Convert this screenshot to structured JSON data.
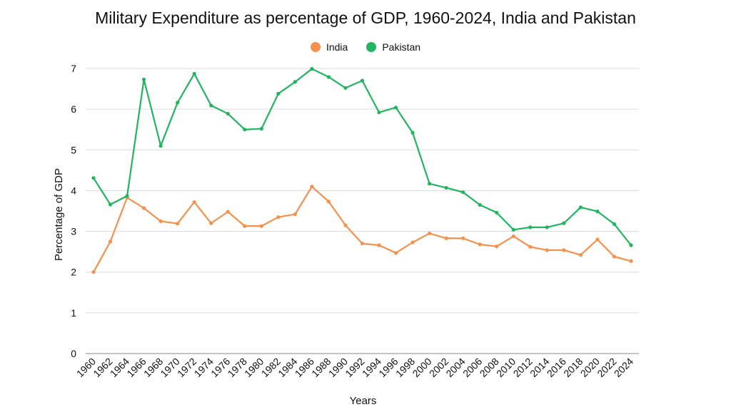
{
  "chart_data": {
    "type": "line",
    "title": "Military Expenditure as percentage of GDP, 1960-2024, India and Pakistan",
    "xlabel": "Years",
    "ylabel": "Percentage of GDP",
    "ylim": [
      0,
      7
    ],
    "yticks": [
      0,
      1,
      2,
      3,
      4,
      5,
      6,
      7
    ],
    "grid": true,
    "legend_position": "top",
    "x": [
      1960,
      1962,
      1964,
      1966,
      1968,
      1970,
      1972,
      1974,
      1976,
      1978,
      1980,
      1982,
      1984,
      1986,
      1988,
      1990,
      1992,
      1994,
      1996,
      1998,
      2000,
      2002,
      2004,
      2006,
      2008,
      2010,
      2012,
      2014,
      2016,
      2018,
      2020,
      2022,
      2024
    ],
    "series": [
      {
        "name": "India",
        "color": "#f4914d",
        "values": [
          2.0,
          2.75,
          3.83,
          3.57,
          3.25,
          3.19,
          3.72,
          3.2,
          3.48,
          3.13,
          3.13,
          3.35,
          3.42,
          4.1,
          3.73,
          3.15,
          2.7,
          2.66,
          2.47,
          2.73,
          2.95,
          2.83,
          2.83,
          2.68,
          2.63,
          2.88,
          2.62,
          2.54,
          2.54,
          2.42,
          2.8,
          2.38,
          2.27
        ]
      },
      {
        "name": "Pakistan",
        "color": "#21b55f",
        "values": [
          4.31,
          3.66,
          3.87,
          6.73,
          5.1,
          6.16,
          6.87,
          6.09,
          5.89,
          5.5,
          5.52,
          6.38,
          6.67,
          6.99,
          6.79,
          6.52,
          6.7,
          5.92,
          6.04,
          5.42,
          4.17,
          4.07,
          3.96,
          3.65,
          3.46,
          3.04,
          3.1,
          3.1,
          3.2,
          3.59,
          3.49,
          3.18,
          2.66
        ]
      }
    ]
  }
}
